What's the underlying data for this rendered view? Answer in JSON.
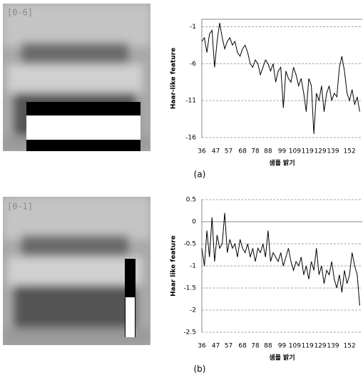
{
  "chart_data": [
    {
      "type": "line",
      "image_label": "[0-6]",
      "panel_label": "(a)",
      "x_label": "샘플 밝기",
      "y_label": "Haar-like feature",
      "x": [
        36,
        38,
        40,
        42,
        44,
        46,
        48,
        50,
        52,
        54,
        56,
        58,
        60,
        62,
        64,
        66,
        68,
        70,
        72,
        74,
        76,
        78,
        80,
        82,
        84,
        86,
        88,
        90,
        92,
        94,
        96,
        98,
        100,
        102,
        104,
        106,
        108,
        110,
        112,
        114,
        116,
        118,
        120,
        122,
        124,
        126,
        128,
        130,
        132,
        134,
        136,
        138,
        140,
        142,
        144,
        146,
        148,
        150,
        152,
        154,
        156,
        158,
        160
      ],
      "series": [
        {
          "color": "#000000",
          "values": [
            -3,
            -2.5,
            -4.5,
            -2,
            -1.5,
            -6.5,
            -3,
            -0.5,
            -2.5,
            -4,
            -3,
            -2.5,
            -3.5,
            -3,
            -4.5,
            -5,
            -4,
            -3.5,
            -4.5,
            -6,
            -6.5,
            -5.5,
            -6,
            -7.5,
            -6.5,
            -5.5,
            -6,
            -7,
            -6,
            -8.5,
            -7,
            -6.5,
            -12,
            -7,
            -8,
            -8.5,
            -6.5,
            -7.5,
            -9,
            -8,
            -10,
            -12.5,
            -8,
            -9,
            -15.5,
            -10,
            -11,
            -9,
            -12.5,
            -10,
            -9,
            -11,
            -10,
            -10.5,
            -6.5,
            -5,
            -7,
            -10,
            -11,
            -9.5,
            -11.5,
            -10.5,
            -12.5
          ]
        }
      ],
      "xlim": [
        36,
        162
      ],
      "xticks": [
        36,
        47,
        57,
        68,
        78,
        88,
        99,
        109,
        119,
        129,
        139,
        152
      ],
      "ylim": [
        -16,
        0
      ],
      "yticks": [
        -1,
        -6,
        -11,
        -16
      ],
      "grid": true
    },
    {
      "type": "line",
      "image_label": "[0-1]",
      "panel_label": "(b)",
      "x_label": "샘플 밝기",
      "y_label": "Haar like feature",
      "x": [
        36,
        38,
        40,
        42,
        44,
        46,
        48,
        50,
        52,
        54,
        56,
        58,
        60,
        62,
        64,
        66,
        68,
        70,
        72,
        74,
        76,
        78,
        80,
        82,
        84,
        86,
        88,
        90,
        92,
        94,
        96,
        98,
        100,
        102,
        104,
        106,
        108,
        110,
        112,
        114,
        116,
        118,
        120,
        122,
        124,
        126,
        128,
        130,
        132,
        134,
        136,
        138,
        140,
        142,
        144,
        146,
        148,
        150,
        152,
        154,
        156,
        158,
        160
      ],
      "series": [
        {
          "color": "#000000",
          "values": [
            -0.6,
            -1,
            -0.2,
            -0.8,
            0.1,
            -0.9,
            -0.3,
            -0.6,
            -0.5,
            0.2,
            -0.7,
            -0.4,
            -0.6,
            -0.5,
            -0.8,
            -0.4,
            -0.6,
            -0.7,
            -0.5,
            -0.8,
            -0.6,
            -0.9,
            -0.6,
            -0.7,
            -0.5,
            -0.8,
            -0.2,
            -0.9,
            -0.7,
            -0.8,
            -0.9,
            -0.7,
            -1,
            -0.8,
            -0.6,
            -0.9,
            -1.1,
            -0.9,
            -1,
            -0.8,
            -1.2,
            -1,
            -1.3,
            -0.9,
            -1.1,
            -0.6,
            -1.2,
            -1,
            -1.4,
            -1.1,
            -1.2,
            -0.9,
            -1.3,
            -1.5,
            -1.2,
            -1.6,
            -1.1,
            -1.4,
            -1.2,
            -0.7,
            -1,
            -1.2,
            -1.9
          ]
        }
      ],
      "xlim": [
        36,
        162
      ],
      "xticks": [
        36,
        47,
        57,
        68,
        78,
        88,
        99,
        109,
        119,
        129,
        139,
        152
      ],
      "ylim": [
        -2.5,
        0.5
      ],
      "yticks": [
        -2.5,
        -2,
        -1.5,
        -1,
        -0.5,
        0,
        0.5
      ],
      "grid": true
    }
  ]
}
